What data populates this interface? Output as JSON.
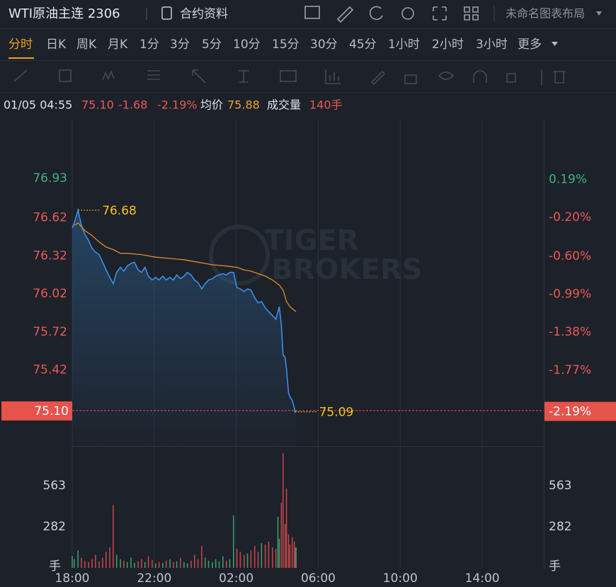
{
  "toolbar": {
    "symbol": "WTI原油主连 2306",
    "contract_info": "合约资料",
    "layout": "未命名图表布局"
  },
  "intervals": [
    "分时",
    "日K",
    "周K",
    "月K",
    "1分",
    "3分",
    "5分",
    "10分",
    "15分",
    "30分",
    "45分",
    "1小时",
    "2小时",
    "3小时",
    "更多"
  ],
  "info": {
    "time": "01/05 04:55",
    "price": "75.10",
    "change": "-1.68",
    "change_pct": "-2.19%",
    "avg_label": "均价",
    "avg": "75.88",
    "volume_label": "成交量",
    "volume": "140手"
  },
  "chart_data": {
    "type": "line",
    "watermark": [
      "TIGER",
      "BROKERS"
    ],
    "xlim": [
      0,
      1380
    ],
    "xticks": [
      {
        "value": 0,
        "label": "18:00"
      },
      {
        "value": 240,
        "label": "22:00"
      },
      {
        "value": 480,
        "label": "02:00"
      },
      {
        "value": 720,
        "label": "06:00"
      },
      {
        "value": 960,
        "label": "10:00"
      },
      {
        "value": 1200,
        "label": "14:00"
      }
    ],
    "ylim": [
      74.82,
      77.4
    ],
    "yticks": [
      76.93,
      76.62,
      76.32,
      76.02,
      75.72,
      75.42
    ],
    "y2lim": [
      -2.55,
      0.81
    ],
    "y2ticks": [
      {
        "value": 0.19,
        "label": "0.19%"
      },
      {
        "value": -0.2,
        "label": "-0.20%"
      },
      {
        "value": -0.6,
        "label": "-0.60%"
      },
      {
        "value": -0.99,
        "label": "-0.99%"
      },
      {
        "value": -1.38,
        "label": "-1.38%"
      },
      {
        "value": -1.77,
        "label": "-1.77%"
      }
    ],
    "grid": true,
    "up_color": "#3fb27f",
    "down_color": "#e8585a",
    "series": [
      {
        "color": "#3d8fe6",
        "area": true,
        "x": [
          0,
          6,
          17,
          27,
          37,
          48,
          58,
          68,
          79,
          89,
          99,
          110,
          120,
          130,
          141,
          151,
          161,
          172,
          182,
          193,
          203,
          213,
          223,
          234,
          244,
          254,
          265,
          275,
          286,
          296,
          306,
          317,
          327,
          337,
          348,
          358,
          368,
          379,
          389,
          399,
          410,
          420,
          430,
          441,
          451,
          461,
          472,
          482,
          492,
          503,
          513,
          523,
          534,
          544,
          554,
          565,
          575,
          586,
          596,
          602,
          606,
          612,
          617,
          623,
          627,
          633,
          637,
          644,
          650,
          652,
          655
        ],
        "values": [
          76.54,
          76.58,
          76.68,
          76.56,
          76.49,
          76.44,
          76.38,
          76.35,
          76.33,
          76.27,
          76.21,
          76.15,
          76.1,
          76.19,
          76.23,
          76.2,
          76.24,
          76.26,
          76.27,
          76.21,
          76.19,
          76.23,
          76.16,
          76.13,
          76.15,
          76.13,
          76.16,
          76.13,
          76.15,
          76.13,
          76.17,
          76.14,
          76.16,
          76.19,
          76.17,
          76.13,
          76.11,
          76.06,
          76.1,
          76.13,
          76.14,
          76.16,
          76.17,
          76.18,
          76.17,
          76.19,
          76.19,
          76.07,
          76.06,
          76.04,
          76.06,
          76.05,
          75.99,
          75.95,
          75.96,
          75.91,
          75.88,
          75.85,
          75.82,
          75.88,
          75.92,
          75.77,
          75.54,
          75.52,
          75.43,
          75.24,
          75.21,
          75.18,
          75.12,
          75.09,
          75.1
        ]
      },
      {
        "color": "#e08a2c",
        "area": false,
        "x": [
          6,
          17,
          37,
          58,
          79,
          99,
          120,
          141,
          161,
          203,
          244,
          286,
          327,
          368,
          410,
          451,
          482,
          503,
          523,
          544,
          565,
          586,
          606,
          617,
          627,
          637,
          655
        ],
        "values": [
          76.56,
          76.58,
          76.52,
          76.48,
          76.43,
          76.39,
          76.37,
          76.34,
          76.34,
          76.33,
          76.31,
          76.3,
          76.29,
          76.27,
          76.25,
          76.24,
          76.23,
          76.21,
          76.2,
          76.18,
          76.16,
          76.13,
          76.09,
          76.05,
          75.96,
          75.92,
          75.88
        ]
      }
    ],
    "annotations": [
      {
        "x": 17,
        "value": 76.68,
        "label": "76.68"
      },
      {
        "x": 652,
        "value": 75.09,
        "label": "75.09"
      }
    ],
    "current": {
      "value": 75.1,
      "label": "75.10",
      "pct_value": -2.19,
      "pct_label": "-2.19%",
      "color": "#e5534b"
    },
    "volume": {
      "values": [
        80,
        60,
        120,
        70,
        50,
        40,
        60,
        90,
        45,
        70,
        110,
        140,
        430,
        90,
        60,
        50,
        40,
        70,
        35,
        45,
        60,
        40,
        80,
        55,
        30,
        40,
        35,
        50,
        60,
        40,
        45,
        70,
        40,
        30,
        50,
        90,
        60,
        150,
        70,
        50,
        40,
        60,
        45,
        80,
        50,
        60,
        360,
        130,
        110,
        90,
        100,
        120,
        150,
        110,
        170,
        160,
        180,
        140,
        130,
        350,
        200,
        447,
        786,
        300,
        544,
        230,
        160,
        210,
        180,
        140,
        140
      ],
      "ylim": [
        0,
        835
      ],
      "yticks": [
        282,
        563
      ],
      "unit": "手",
      "up_color": "#3c9a6a",
      "down_color": "#c0454a"
    }
  }
}
